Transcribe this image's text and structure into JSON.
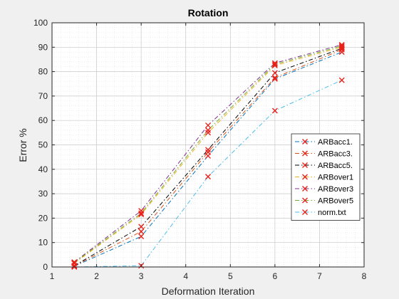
{
  "chart_data": {
    "type": "line",
    "title": "Rotation",
    "xlabel": "Deformation Iteration",
    "ylabel": "Error %",
    "xlim": [
      1,
      8
    ],
    "ylim": [
      0,
      100
    ],
    "xticks": [
      1,
      2,
      3,
      4,
      5,
      6,
      7,
      8
    ],
    "yticks": [
      0,
      10,
      20,
      30,
      40,
      50,
      60,
      70,
      80,
      90,
      100
    ],
    "grid": "on (major and minor)",
    "legend_position": "right",
    "x": [
      1.5,
      3,
      4.5,
      6,
      7.5
    ],
    "series": [
      {
        "name": "ARBacc1.",
        "color": "#0072BD",
        "values": [
          0.3,
          12.5,
          45.5,
          77,
          88
        ]
      },
      {
        "name": "ARBacc3.",
        "color": "#D95319",
        "values": [
          0.4,
          14.5,
          47,
          77.5,
          89
        ]
      },
      {
        "name": "ARBacc5.",
        "color": "#000000",
        "values": [
          0.5,
          16.5,
          48,
          79.5,
          89.5
        ]
      },
      {
        "name": "ARBover1",
        "color": "#EDB120",
        "values": [
          1.5,
          21.5,
          55,
          82.5,
          90
        ]
      },
      {
        "name": "ARBover3",
        "color": "#7E2F8E",
        "values": [
          2,
          23,
          58,
          83.5,
          91
        ]
      },
      {
        "name": "ARBover5",
        "color": "#77AC30",
        "values": [
          1.8,
          22,
          56,
          83,
          90.5
        ]
      },
      {
        "name": "norm.txt",
        "color": "#4DBEEE",
        "values": [
          0,
          0.5,
          37,
          64,
          76.5
        ]
      }
    ]
  }
}
